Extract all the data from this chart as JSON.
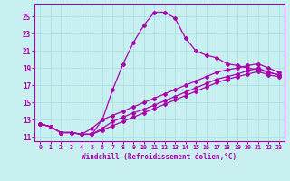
{
  "xlabel": "Windchill (Refroidissement éolien,°C)",
  "background_color": "#c8f0f0",
  "grid_color": "#b0dede",
  "line_color": "#aa00aa",
  "xlim": [
    -0.5,
    23.5
  ],
  "ylim": [
    10.5,
    26.5
  ],
  "xticks": [
    0,
    1,
    2,
    3,
    4,
    5,
    6,
    7,
    8,
    9,
    10,
    11,
    12,
    13,
    14,
    15,
    16,
    17,
    18,
    19,
    20,
    21,
    22,
    23
  ],
  "yticks": [
    11,
    13,
    15,
    17,
    19,
    21,
    23,
    25
  ],
  "line1_x": [
    0,
    1,
    2,
    3,
    4,
    5,
    6,
    7,
    8,
    9,
    10,
    11,
    12,
    13,
    14,
    15,
    16,
    17,
    18,
    19,
    20,
    21,
    22,
    23
  ],
  "line1_y": [
    12.5,
    12.2,
    11.5,
    11.5,
    11.3,
    11.3,
    13.0,
    16.5,
    19.5,
    22.0,
    24.0,
    25.5,
    25.5,
    24.8,
    22.5,
    21.0,
    20.5,
    20.2,
    19.5,
    19.3,
    19.0,
    18.8,
    18.5,
    18.2
  ],
  "line2_x": [
    0,
    1,
    2,
    3,
    4,
    5,
    6,
    7,
    8,
    9,
    10,
    11,
    12,
    13,
    14,
    15,
    16,
    17,
    18,
    19,
    20,
    21,
    22,
    23
  ],
  "line2_y": [
    12.5,
    12.2,
    11.5,
    11.5,
    11.3,
    12.0,
    13.0,
    13.5,
    14.0,
    14.5,
    15.0,
    15.5,
    16.0,
    16.5,
    17.0,
    17.5,
    18.0,
    18.5,
    18.8,
    19.0,
    19.3,
    19.5,
    19.0,
    18.5
  ],
  "line3_x": [
    0,
    1,
    2,
    3,
    4,
    5,
    6,
    7,
    8,
    9,
    10,
    11,
    12,
    13,
    14,
    15,
    16,
    17,
    18,
    19,
    20,
    21,
    22,
    23
  ],
  "line3_y": [
    12.5,
    12.2,
    11.5,
    11.5,
    11.3,
    11.3,
    12.0,
    12.8,
    13.3,
    13.8,
    14.2,
    14.7,
    15.2,
    15.7,
    16.2,
    16.7,
    17.2,
    17.7,
    18.0,
    18.3,
    18.7,
    19.0,
    18.5,
    18.2
  ],
  "line4_x": [
    0,
    1,
    2,
    3,
    4,
    5,
    6,
    7,
    8,
    9,
    10,
    11,
    12,
    13,
    14,
    15,
    16,
    17,
    18,
    19,
    20,
    21,
    22,
    23
  ],
  "line4_y": [
    12.5,
    12.2,
    11.5,
    11.5,
    11.3,
    11.3,
    11.8,
    12.3,
    12.8,
    13.3,
    13.8,
    14.3,
    14.8,
    15.3,
    15.8,
    16.3,
    16.8,
    17.3,
    17.7,
    18.0,
    18.3,
    18.6,
    18.2,
    18.0
  ]
}
